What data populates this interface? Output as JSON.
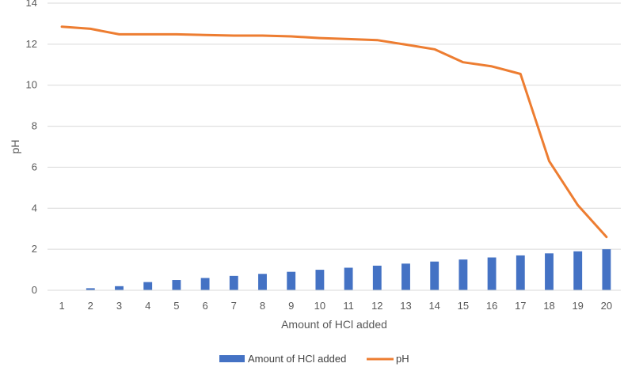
{
  "chart_data": {
    "type": "bar",
    "categories": [
      "1",
      "2",
      "3",
      "4",
      "5",
      "6",
      "7",
      "8",
      "9",
      "10",
      "11",
      "12",
      "13",
      "14",
      "15",
      "16",
      "17",
      "18",
      "19",
      "20"
    ],
    "series": [
      {
        "name": "Amount of HCl added",
        "type": "bar",
        "color": "#4472C4",
        "values": [
          0,
          0.1,
          0.2,
          0.4,
          0.5,
          0.6,
          0.7,
          0.8,
          0.9,
          1.0,
          1.1,
          1.2,
          1.3,
          1.4,
          1.5,
          1.6,
          1.7,
          1.8,
          1.9,
          2.0
        ]
      },
      {
        "name": "pH",
        "type": "line",
        "color": "#ED7D31",
        "values": [
          12.85,
          12.75,
          12.48,
          12.48,
          12.48,
          12.45,
          12.42,
          12.42,
          12.38,
          12.3,
          12.25,
          12.2,
          11.98,
          11.75,
          11.12,
          10.92,
          10.55,
          6.3,
          4.15,
          2.6
        ]
      }
    ],
    "xlabel": "Amount of HCl added",
    "ylabel": "pH",
    "ylim": [
      0,
      14
    ],
    "yticks": [
      "0",
      "2",
      "4",
      "6",
      "8",
      "10",
      "12",
      "14"
    ],
    "grid": true,
    "legend": "bottom"
  }
}
